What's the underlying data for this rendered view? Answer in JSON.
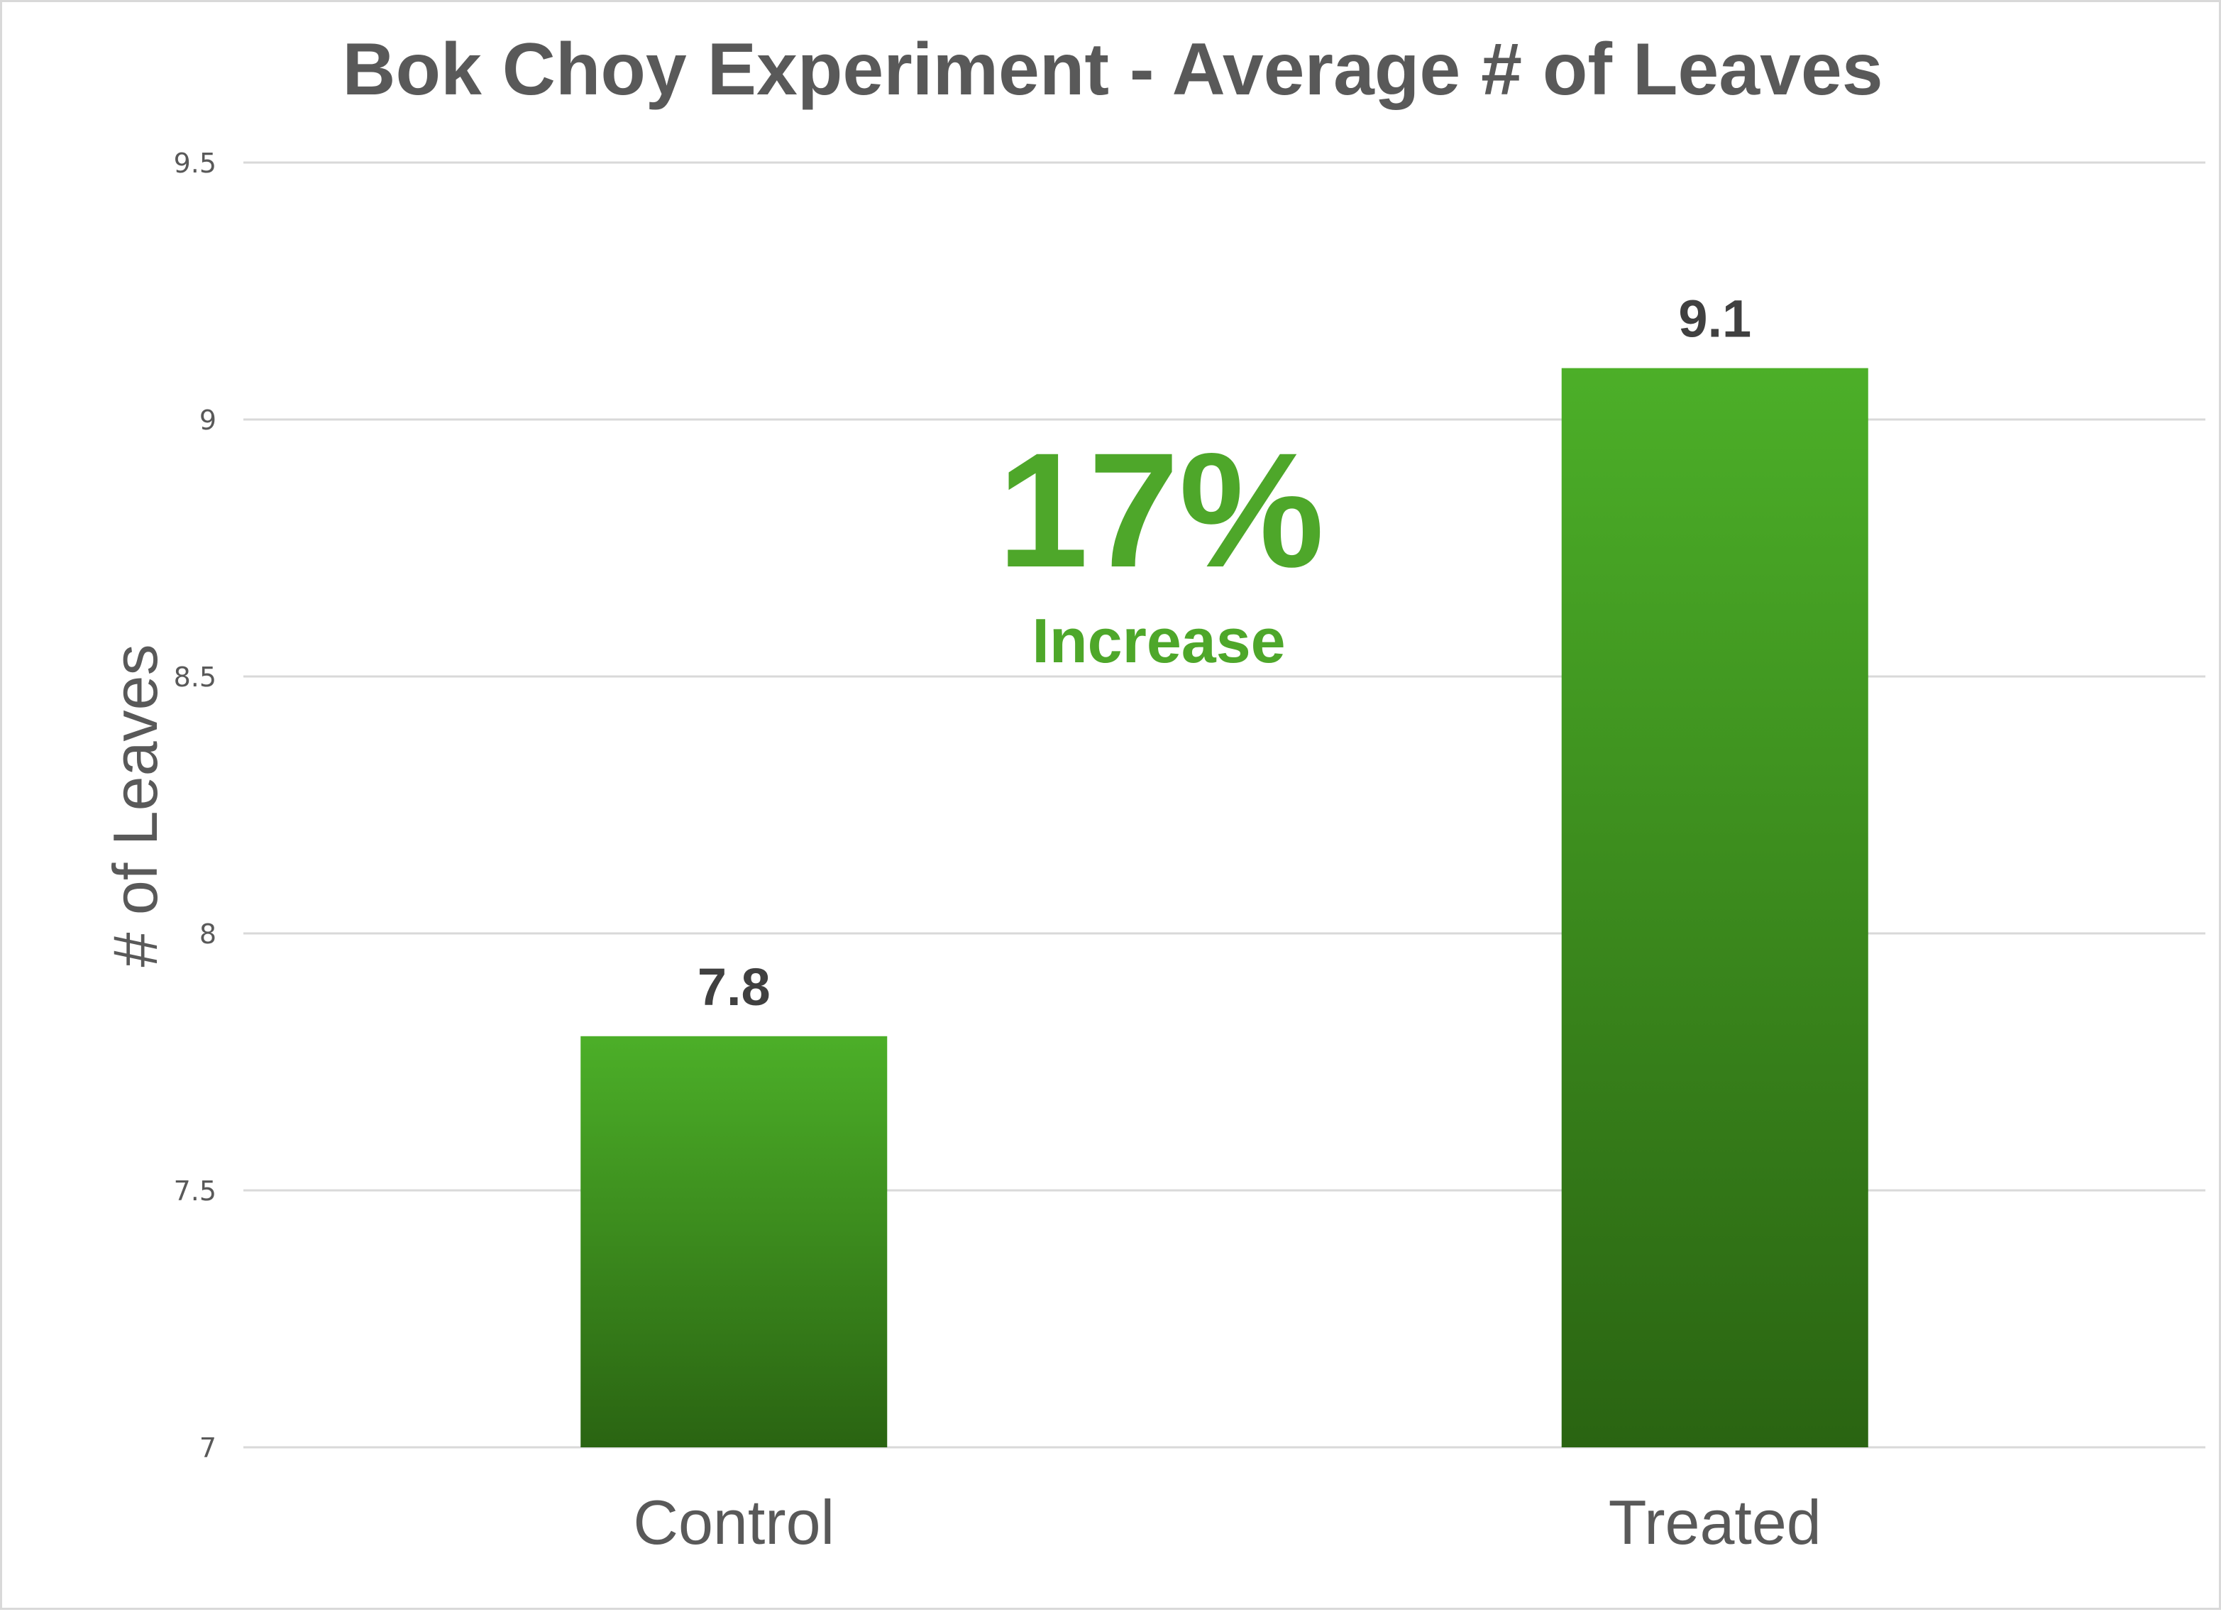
{
  "chart_data": {
    "type": "bar",
    "title": "Bok Choy Experiment - Average # of Leaves",
    "xlabel": "",
    "ylabel": "# of Leaves",
    "categories": [
      "Control",
      "Treated"
    ],
    "values": [
      7.8,
      9.1
    ],
    "data_labels": [
      "7.8",
      "9.1"
    ],
    "ylim": [
      7,
      9.5
    ],
    "yticks": [
      {
        "value": 7,
        "label": "7"
      },
      {
        "value": 7.5,
        "label": "7.5"
      },
      {
        "value": 8,
        "label": "8"
      },
      {
        "value": 8.5,
        "label": "8.5"
      },
      {
        "value": 9,
        "label": "9"
      },
      {
        "value": 9.5,
        "label": "9.5"
      }
    ],
    "grid": true,
    "legend": "none",
    "annotation": {
      "value": "17%",
      "text": "Increase"
    },
    "colors": {
      "bar_top": "#4caf28",
      "bar_bottom": "#2a6412",
      "annotation": "#4ea72a",
      "grid": "#d9d9d9",
      "text": "#595959",
      "data_label": "#404040"
    }
  }
}
